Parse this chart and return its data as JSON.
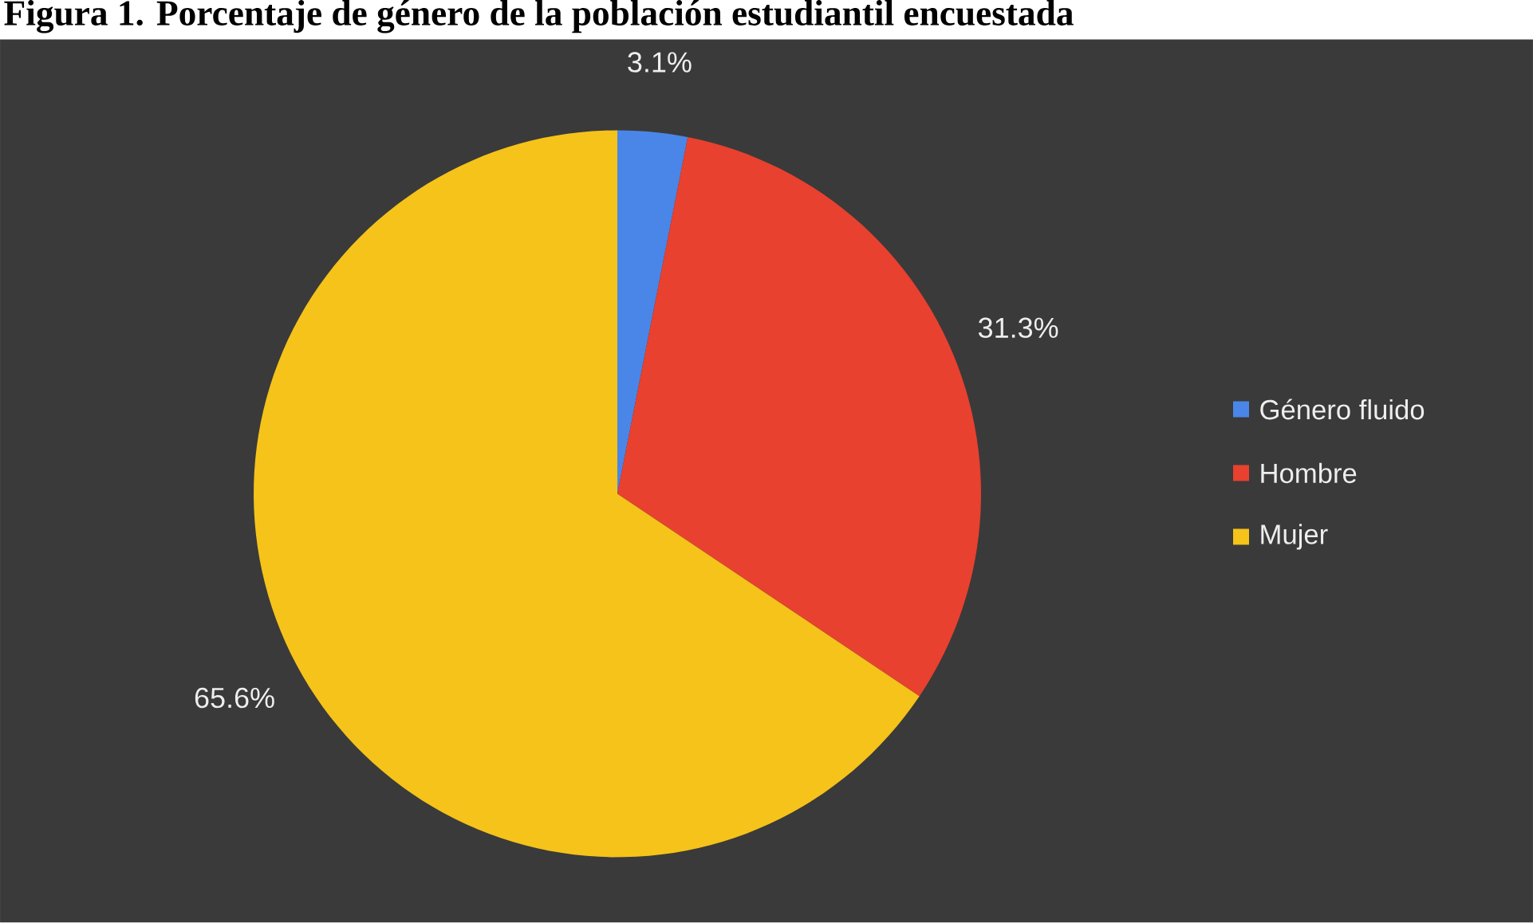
{
  "chart_data": {
    "type": "pie",
    "title": "Figura 1. Porcentaje de género de la población estudiantil encuestada",
    "categories": [
      "Género fluido",
      "Hombre",
      "Mujer"
    ],
    "values": [
      3.1,
      31.3,
      65.6
    ],
    "value_labels": [
      "3.1%",
      "31.3%",
      "65.6%"
    ],
    "colors": [
      "#4a86e8",
      "#e8412f",
      "#f5c31a"
    ],
    "legend": "right"
  }
}
